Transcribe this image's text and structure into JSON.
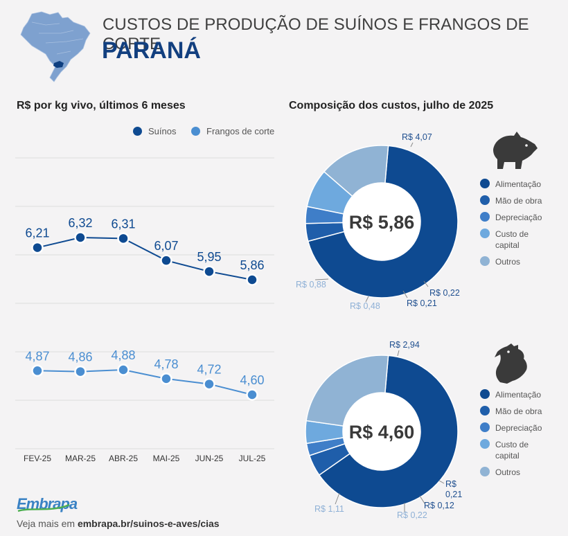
{
  "header": {
    "title": "CUSTOS DE PRODUÇÃO DE SUÍNOS E FRANGOS DE CORTE",
    "state": "PARANÁ"
  },
  "sections": {
    "line_title": "R$ por kg vivo, últimos 6 meses",
    "donut_title": "Composição dos custos, julho de 2025"
  },
  "line_legend": [
    "Suínos",
    "Frangos de corte"
  ],
  "donut_legend": [
    "Alimentação",
    "Mão de obra",
    "Depreciação",
    "Custo de capital",
    "Outros"
  ],
  "colors": {
    "suinos": "#0e4a91",
    "frangos": "#4a8ed1",
    "alimentacao": "#0e4a91",
    "mao_de_obra": "#1f5eaa",
    "depreciacao": "#3f7ec8",
    "custo_capital": "#6ea9de",
    "outros": "#90b3d4",
    "map": "#7ea1cf",
    "map_highlight": "#0e3f80"
  },
  "icons": [
    "brazil-map-icon",
    "pig-icon",
    "chicken-icon"
  ],
  "chart_data": [
    {
      "type": "line",
      "categories": [
        "FEV-25",
        "MAR-25",
        "ABR-25",
        "MAI-25",
        "JUN-25",
        "JUL-25"
      ],
      "series": [
        {
          "name": "Suínos",
          "values": [
            6.21,
            6.32,
            6.31,
            6.07,
            5.95,
            5.86
          ],
          "labels": [
            "6,21",
            "6,32",
            "6,31",
            "6,07",
            "5,95",
            "5,86"
          ]
        },
        {
          "name": "Frangos de corte",
          "values": [
            4.87,
            4.86,
            4.88,
            4.78,
            4.72,
            4.6
          ],
          "labels": [
            "4,87",
            "4,86",
            "4,88",
            "4,78",
            "4,72",
            "4,60"
          ]
        }
      ],
      "title": "R$ por kg vivo, últimos 6 meses",
      "grid": true,
      "legend": "top-right"
    },
    {
      "type": "pie",
      "title": "Composição dos custos, julho de 2025",
      "total_label": "R$ 5,86",
      "categories": [
        "Alimentação",
        "Mão de obra",
        "Depreciação",
        "Custo de capital",
        "Outros"
      ],
      "values": [
        4.07,
        0.22,
        0.21,
        0.48,
        0.88
      ],
      "labels": [
        "R$ 4,07",
        "R$ 0,22",
        "R$ 0,21",
        "R$ 0,48",
        "R$ 0,88"
      ]
    },
    {
      "type": "pie",
      "title": "Composição dos custos, julho de 2025",
      "total_label": "R$ 4,60",
      "categories": [
        "Alimentação",
        "Mão de obra",
        "Depreciação",
        "Custo de capital",
        "Outros"
      ],
      "values": [
        2.94,
        0.21,
        0.12,
        0.22,
        1.11
      ],
      "labels": [
        "R$ 2,94",
        "R$ 0,21",
        "R$ 0,12",
        "R$ 0,22",
        "R$ 1,11"
      ]
    }
  ],
  "footer": {
    "logo": "Embrapa",
    "prefix": "Veja mais em",
    "link": "embrapa.br/suinos-e-aves/cias"
  }
}
